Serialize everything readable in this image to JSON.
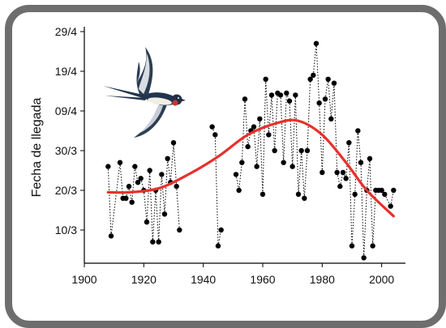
{
  "chart_data": {
    "type": "line",
    "title": "",
    "xlabel": "",
    "ylabel": "Fecha de llegada",
    "xlim": [
      1900,
      2008
    ],
    "ylim": [
      0,
      100
    ],
    "x_ticks": [
      1900,
      1920,
      1940,
      1960,
      1980,
      2000
    ],
    "y_ticks": [
      {
        "value": 10,
        "label": "10/3"
      },
      {
        "value": 20,
        "label": "20/3"
      },
      {
        "value": 30,
        "label": "30/3"
      },
      {
        "value": 40,
        "label": "09/4"
      },
      {
        "value": 50,
        "label": "19/4"
      },
      {
        "value": 60,
        "label": "29/4"
      }
    ],
    "grid": false,
    "series": [
      {
        "style": "dotted-line-with-points",
        "color": "#000000",
        "points": [
          [
            1908,
            26
          ],
          [
            1909,
            8.5
          ],
          [
            1912,
            27
          ],
          [
            1913,
            18
          ],
          [
            1914,
            18
          ],
          [
            1915,
            21
          ],
          [
            1916,
            17
          ],
          [
            1917,
            26
          ],
          [
            1918,
            22
          ],
          [
            1919,
            23
          ],
          [
            1920,
            20
          ],
          [
            1921,
            12
          ],
          [
            1922,
            25
          ],
          [
            1923,
            7
          ],
          [
            1924,
            20
          ],
          [
            1925,
            7
          ],
          [
            1926,
            24
          ],
          [
            1927,
            14
          ],
          [
            1928,
            28
          ],
          [
            1929,
            22
          ],
          [
            1930,
            32
          ],
          [
            1931,
            21
          ],
          [
            1932,
            10
          ],
          [
            1943,
            36
          ],
          [
            1944,
            34
          ],
          [
            1945,
            6
          ],
          [
            1946,
            10
          ],
          [
            1951,
            24
          ],
          [
            1952,
            20
          ],
          [
            1953,
            27
          ],
          [
            1954,
            43
          ],
          [
            1955,
            31
          ],
          [
            1956,
            35
          ],
          [
            1957,
            36
          ],
          [
            1958,
            26
          ],
          [
            1959,
            38
          ],
          [
            1960,
            19
          ],
          [
            1961,
            48
          ],
          [
            1962,
            34
          ],
          [
            1963,
            44
          ],
          [
            1964,
            30
          ],
          [
            1965,
            44.5
          ],
          [
            1966,
            44
          ],
          [
            1967,
            27
          ],
          [
            1968,
            44.5
          ],
          [
            1969,
            42.5
          ],
          [
            1970,
            26
          ],
          [
            1971,
            44
          ],
          [
            1972,
            19
          ],
          [
            1973,
            30
          ],
          [
            1974,
            18
          ],
          [
            1975,
            30
          ],
          [
            1976,
            48
          ],
          [
            1977,
            49
          ],
          [
            1978,
            57
          ],
          [
            1979,
            42
          ],
          [
            1980,
            24.5
          ],
          [
            1981,
            43
          ],
          [
            1982,
            48
          ],
          [
            1983,
            38
          ],
          [
            1984,
            47
          ],
          [
            1985,
            24.5
          ],
          [
            1986,
            21
          ],
          [
            1987,
            24.5
          ],
          [
            1988,
            23
          ],
          [
            1989,
            32
          ],
          [
            1990,
            6
          ],
          [
            1991,
            19
          ],
          [
            1992,
            35
          ],
          [
            1993,
            27
          ],
          [
            1994,
            3
          ],
          [
            1995,
            20
          ],
          [
            1996,
            28
          ],
          [
            1997,
            6
          ],
          [
            1998,
            20
          ],
          [
            1999,
            20
          ],
          [
            2000,
            20
          ],
          [
            2001,
            19
          ],
          [
            2003,
            16
          ],
          [
            2004,
            20
          ]
        ]
      },
      {
        "style": "smooth-trend",
        "color": "#e8302b",
        "points": [
          [
            1908,
            19.5
          ],
          [
            1915,
            19.5
          ],
          [
            1925,
            20.5
          ],
          [
            1935,
            24
          ],
          [
            1945,
            28.5
          ],
          [
            1955,
            34
          ],
          [
            1965,
            37
          ],
          [
            1972,
            37.5
          ],
          [
            1980,
            34
          ],
          [
            1988,
            27
          ],
          [
            1995,
            20
          ],
          [
            2004,
            13.5
          ]
        ]
      }
    ]
  },
  "illustration": {
    "icon": "swallow-bird-icon"
  }
}
